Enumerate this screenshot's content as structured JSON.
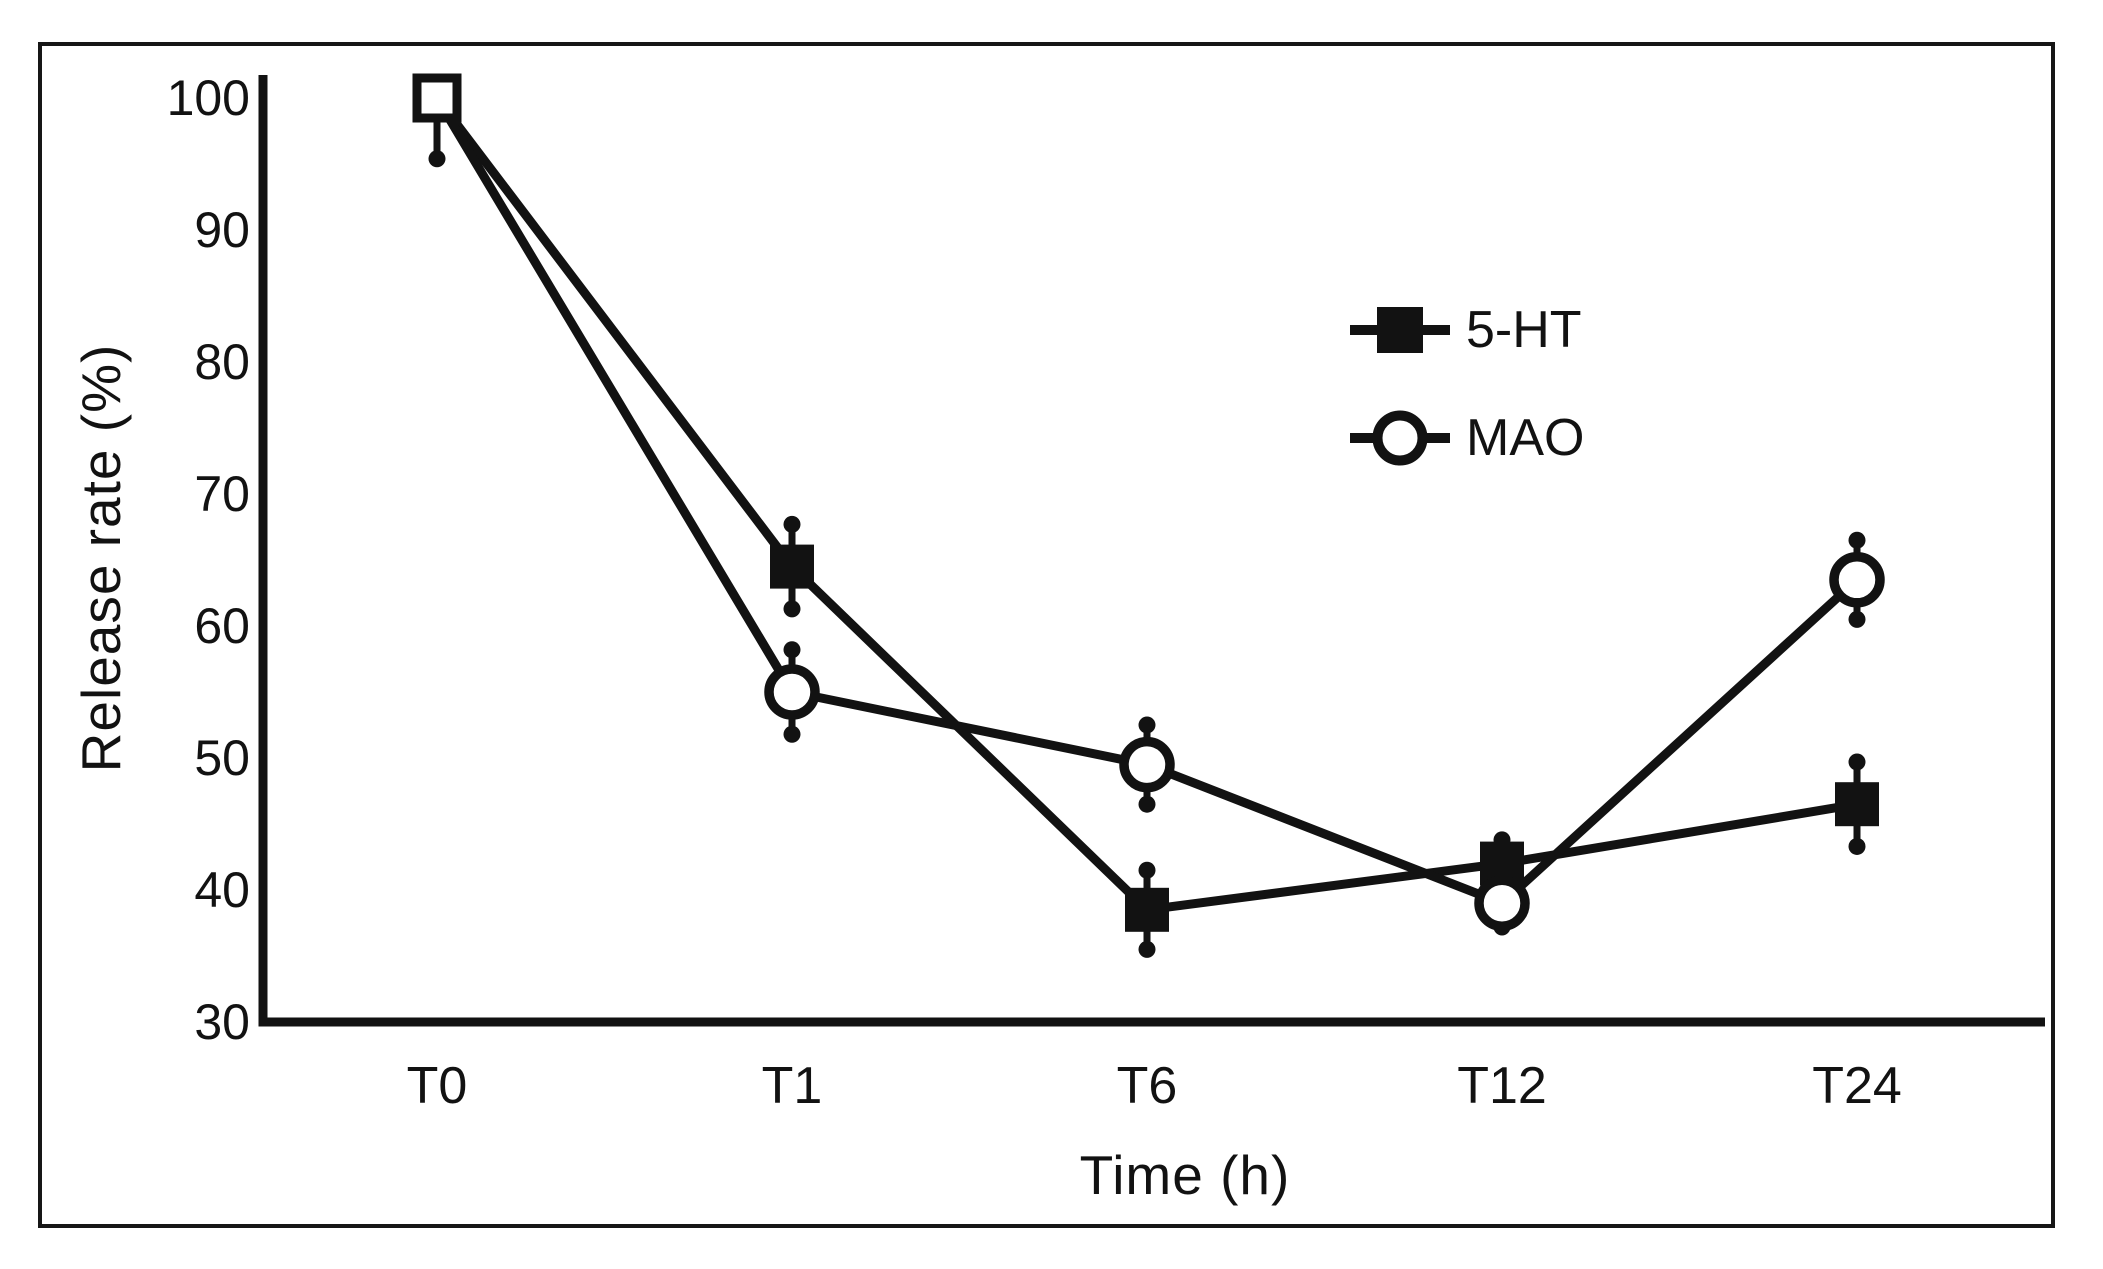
{
  "figure": {
    "background": "#ffffff",
    "ink_color": "#121212",
    "border": "thin black frame around entire figure"
  },
  "chart_data": {
    "type": "line",
    "title": "",
    "xlabel": "Time (h)",
    "ylabel": "Release rate (%)",
    "categories": [
      "T0",
      "T1",
      "T6",
      "T12",
      "T24"
    ],
    "y_ticks": [
      100,
      90,
      80,
      70,
      60,
      50,
      40,
      30
    ],
    "ylim": [
      30,
      100
    ],
    "grid": false,
    "legend_position": "upper-right-inside",
    "shared_start_marker": "open-square",
    "shared_start_error_down": 4.6,
    "series": [
      {
        "name": "5-HT",
        "marker": "filled-square",
        "values": [
          100,
          64.5,
          38.5,
          42,
          46.5
        ],
        "errors": [
          4.6,
          3.2,
          3,
          1.8,
          3.2
        ]
      },
      {
        "name": "MAO",
        "marker": "open-circle",
        "values": [
          100,
          55,
          49.5,
          39,
          63.5
        ],
        "errors": [
          4.6,
          3.2,
          3,
          1.8,
          3
        ]
      }
    ]
  }
}
